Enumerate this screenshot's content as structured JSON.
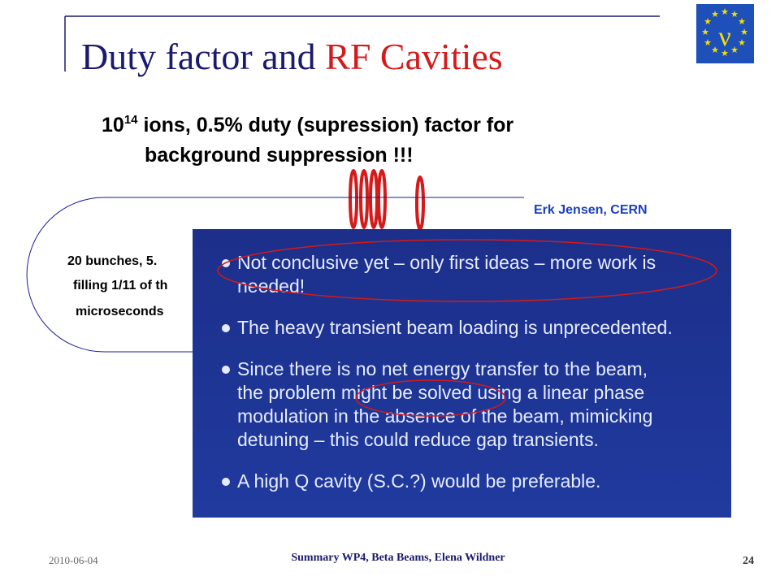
{
  "header": {
    "title_main": "Duty factor and ",
    "title_accent": "RF Cavities"
  },
  "subtitle": {
    "base": "10",
    "exponent": "14",
    "line1": " ions, 0.5% duty (supression) factor for",
    "line2": "background suppression !!!"
  },
  "credit": "Erk Jensen, CERN",
  "left_box": {
    "lines": [
      "20 bunches, 5.",
      "filling 1/11 of th",
      "microseconds"
    ]
  },
  "screenshot": {
    "bullets": [
      [
        "Not conclusive yet – only first ideas – more work is",
        "needed!"
      ],
      [
        "The heavy transient beam loading is unprecedented."
      ],
      [
        "Since there is no net energy transfer to the beam,",
        "the problem might be solved using a linear phase",
        "modulation in the absence of the beam, mimicking",
        "detuning – this could reduce gap transients."
      ],
      [
        "A high Q cavity (S.C.?) would be preferable."
      ]
    ]
  },
  "footer": {
    "date": "2010-06-04",
    "center": "Summary WP4, Beta Beams, Elena Wildner",
    "page": "24"
  }
}
